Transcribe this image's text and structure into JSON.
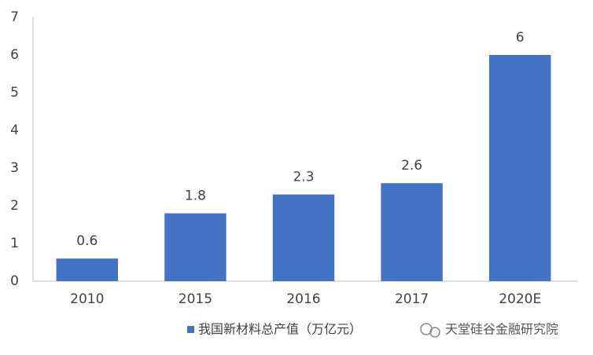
{
  "chart_data": {
    "type": "bar",
    "categories": [
      "2010",
      "2015",
      "2016",
      "2017",
      "2020E"
    ],
    "series": [
      {
        "name": "我国新材料总产值（万亿元）",
        "color": "#4472c4",
        "values": [
          0.6,
          1.8,
          2.3,
          2.6,
          6
        ]
      }
    ],
    "ylim": [
      0,
      7
    ],
    "yticks": [
      0,
      1,
      2,
      3,
      4,
      5,
      6,
      7
    ],
    "grid": false,
    "legend": "bottom",
    "watermark": "天堂硅谷金融研究院"
  }
}
